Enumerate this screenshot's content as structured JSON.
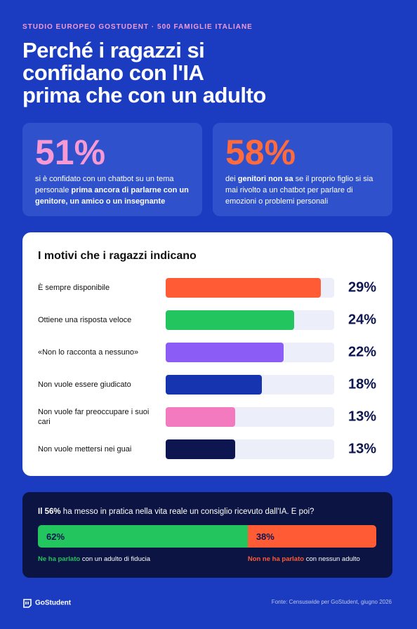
{
  "header": {
    "kicker": "STUDIO EUROPEO GOSTUDENT · 500 FAMIGLIE ITALIANE",
    "title_lines": [
      "Perché i ragazzi si",
      "confidano con l'IA",
      "prima che con un adulto"
    ]
  },
  "stats": [
    {
      "value": "51%",
      "color": "#f79ad3",
      "text": [
        {
          "text": "si è confidato con un chatbot su un tema personale ",
          "strong": false
        },
        {
          "text": "prima ancora di parlarne con un genitore, un amico o un insegnante",
          "strong": true
        }
      ]
    },
    {
      "value": "58%",
      "color": "#ff6b3d",
      "text": [
        {
          "text": "dei ",
          "strong": false
        },
        {
          "text": "genitori non sa",
          "strong": true
        },
        {
          "text": " se il proprio figlio si sia mai rivolto a un chatbot per parlare di emozioni o problemi personali",
          "strong": false
        }
      ]
    }
  ],
  "chart_data": [
    {
      "type": "bar",
      "orientation": "horizontal",
      "title": "I motivi che i ragazzi indicano",
      "categories": [
        "È sempre disponibile",
        "Ottiene una risposta veloce",
        "«Non lo racconta a nessuno»",
        "Non vuole essere giudicato",
        "Non vuole far preoccupare i suoi cari",
        "Non vuole mettersi nei guai"
      ],
      "values": [
        29,
        24,
        22,
        18,
        13,
        13
      ],
      "value_labels": [
        "29%",
        "24%",
        "22%",
        "18%",
        "13%",
        "13%"
      ],
      "colors": [
        "#ff5b35",
        "#22c55e",
        "#8b5cf6",
        "#1634b0",
        "#f47ac0",
        "#0d1650"
      ],
      "track_color": "#eceefa",
      "xlim": [
        0,
        31.5
      ]
    },
    {
      "type": "split",
      "title": [
        {
          "text": "Il 56%",
          "strong": true
        },
        {
          "text": " ha messo in pratica nella vita reale un consiglio ricevuto dall'IA. E poi?",
          "strong": false
        }
      ],
      "xlim": [
        0,
        100
      ],
      "series": [
        {
          "name": "Ne ha parlato",
          "note": "con un adulto di fiducia",
          "color": "#22c55e",
          "values": [
            62
          ],
          "value_labels": [
            "62%"
          ]
        },
        {
          "name": "Non ne ha parlato",
          "note": "con nessun adulto",
          "color": "#ff5b35",
          "values": [
            38
          ],
          "value_labels": [
            "38%"
          ]
        }
      ]
    }
  ],
  "footer": {
    "logo": "GoStudent",
    "source": "Fonte: Censuswide per GoStudent, giugno 2026"
  }
}
